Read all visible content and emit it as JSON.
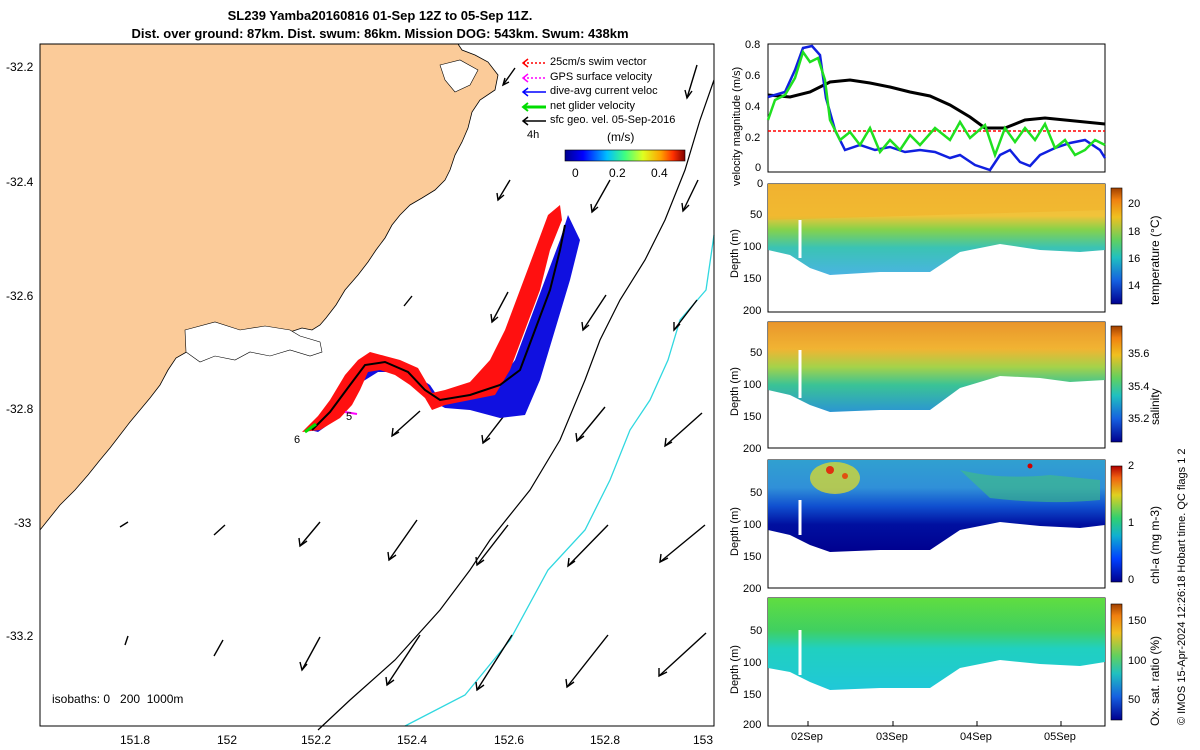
{
  "title": {
    "line1": "SL239 Yamba20160816 01-Sep 12Z to 05-Sep 11Z.",
    "line2": "Dist. over ground: 87km. Dist. swum: 86km. Mission DOG: 543km. Swum: 438km"
  },
  "map": {
    "lat_ticks": [
      "-32.2",
      "-32.4",
      "-32.6",
      "-32.8",
      "-33",
      "-33.2"
    ],
    "lon_ticks": [
      "151.8",
      "152",
      "152.2",
      "152.4",
      "152.6",
      "152.8",
      "153"
    ],
    "legend": [
      {
        "label": "25cm/s swim vector",
        "color": "#ff0000"
      },
      {
        "label": "GPS surface velocity",
        "color": "#ff00ff"
      },
      {
        "label": "dive-avg current veloc",
        "color": "#0000ff"
      },
      {
        "label": "net glider velocity",
        "color": "#00dd00"
      },
      {
        "label": "sfc geo. vel. 05-Sep-2016",
        "color": "#000000"
      }
    ],
    "legend_time": "4h",
    "colorbar_label": "(m/s)",
    "colorbar_ticks": [
      "0",
      "0.2",
      "0.4"
    ],
    "isobath_label": "isobaths: 0   200  1000m",
    "markers": [
      "5",
      "6"
    ],
    "land_color": "#fbcb99"
  },
  "velocity_panel": {
    "ylabel": "velocity magnitude (m/s)",
    "yticks": [
      "0.8",
      "0.6",
      "0.4",
      "0.2",
      "0"
    ]
  },
  "section_panels": [
    {
      "ylabel": "Depth (m)",
      "cb_label": "temperature (°C)",
      "cb_ticks": [
        "20",
        "18",
        "16",
        "14"
      ],
      "depth_ticks": [
        "0",
        "50",
        "100",
        "150",
        "200"
      ]
    },
    {
      "ylabel": "Depth (m)",
      "cb_label": "salinity",
      "cb_ticks": [
        "35.6",
        "35.4",
        "35.2"
      ],
      "depth_ticks": [
        "50",
        "100",
        "150",
        "200"
      ]
    },
    {
      "ylabel": "Depth (m)",
      "cb_label": "chl-a (mg m-3)",
      "cb_ticks": [
        "2",
        "1",
        "0"
      ],
      "depth_ticks": [
        "50",
        "100",
        "150",
        "200"
      ]
    },
    {
      "ylabel": "Depth (m)",
      "cb_label": "Ox. sat. ratio (%)",
      "cb_ticks": [
        "150",
        "100",
        "50"
      ],
      "depth_ticks": [
        "50",
        "100",
        "150",
        "200"
      ]
    }
  ],
  "time_ticks": [
    "02Sep",
    "03Sep",
    "04Sep",
    "05Sep"
  ],
  "side_caption": "© IMOS 15-Apr-2024 12:26:18 Hobart time. QC flags 1  2"
}
